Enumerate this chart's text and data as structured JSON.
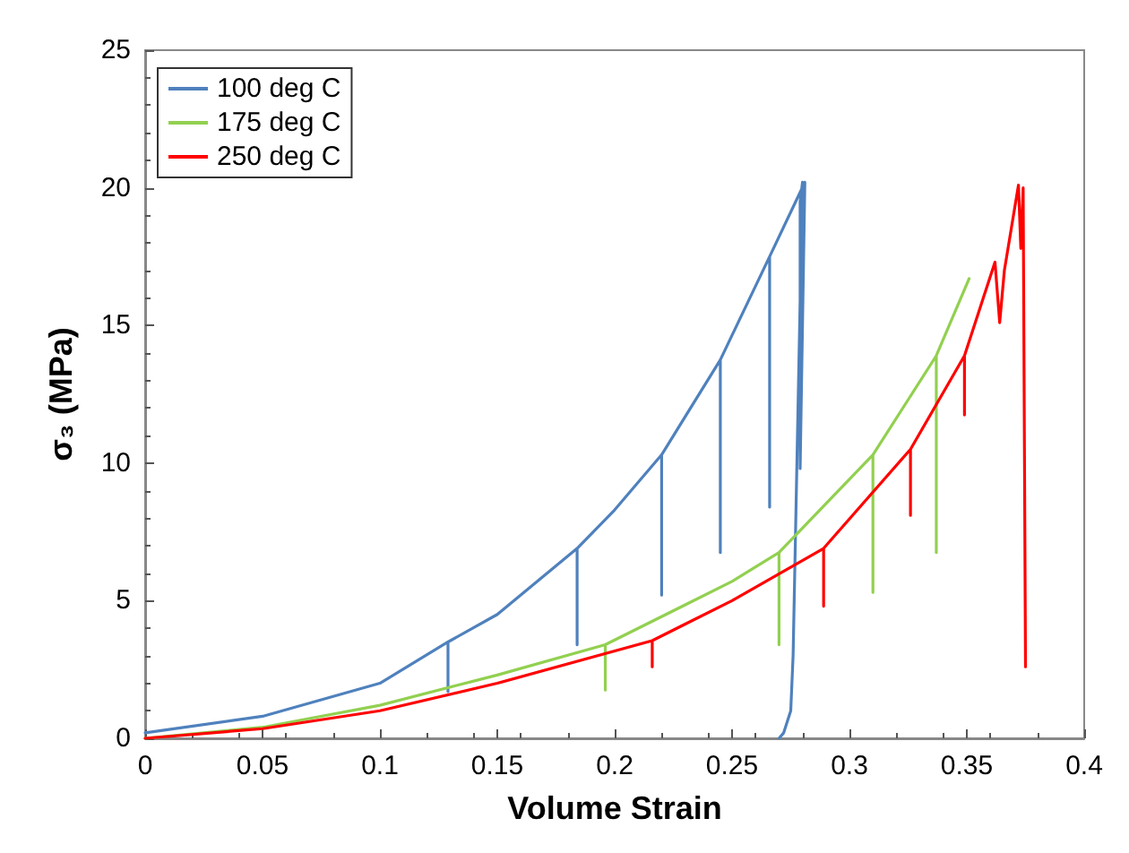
{
  "chart_data": {
    "type": "line",
    "xlabel": "Volume Strain",
    "ylabel": "σ₃ (MPa)",
    "xlim": [
      0,
      0.4
    ],
    "xticks": [
      0,
      0.05,
      0.1,
      0.15,
      0.2,
      0.25,
      0.3,
      0.35,
      0.4
    ],
    "ylim": [
      0,
      25
    ],
    "yticks": [
      0,
      5,
      10,
      15,
      20,
      25
    ],
    "grid": false,
    "legend": "top left",
    "marker": "none",
    "line_style": "solid",
    "series": [
      {
        "name": "100 deg C",
        "color": "#4f81bd",
        "x": [
          0,
          0.05,
          0.1,
          0.129,
          0.129,
          0.129,
          0.15,
          0.184,
          0.184,
          0.184,
          0.2,
          0.22,
          0.22,
          0.22,
          0.245,
          0.245,
          0.245,
          0.266,
          0.266,
          0.266,
          0.281,
          0.279,
          0.279,
          0.28,
          0.276,
          0.275,
          0.272,
          0.27
        ],
        "values": [
          0.2,
          0.8,
          2.0,
          3.5,
          1.7,
          3.5,
          4.5,
          6.9,
          3.4,
          6.9,
          8.3,
          10.3,
          5.2,
          10.3,
          13.75,
          6.75,
          13.75,
          17.5,
          8.4,
          17.5,
          20.2,
          9.8,
          19.5,
          20.2,
          3,
          1,
          0.2,
          0
        ]
      },
      {
        "name": "175 deg C",
        "color": "#92d050",
        "x": [
          0,
          0.05,
          0.1,
          0.15,
          0.196,
          0.196,
          0.196,
          0.25,
          0.27,
          0.27,
          0.27,
          0.31,
          0.31,
          0.31,
          0.337,
          0.337,
          0.337,
          0.351
        ],
        "values": [
          0,
          0.4,
          1.2,
          2.3,
          3.4,
          1.75,
          3.4,
          5.7,
          6.75,
          3.4,
          6.75,
          10.3,
          5.3,
          10.3,
          13.9,
          6.75,
          13.9,
          16.7
        ]
      },
      {
        "name": "250 deg C",
        "color": "#ff0000",
        "x": [
          0,
          0.05,
          0.1,
          0.15,
          0.216,
          0.216,
          0.216,
          0.25,
          0.289,
          0.289,
          0.289,
          0.326,
          0.326,
          0.326,
          0.349,
          0.349,
          0.349,
          0.362,
          0.364,
          0.366,
          0.372,
          0.373,
          0.374,
          0.375
        ],
        "values": [
          0,
          0.35,
          1.0,
          2.0,
          3.55,
          2.6,
          3.55,
          5.0,
          6.9,
          4.8,
          6.9,
          10.5,
          8.1,
          10.5,
          13.9,
          11.75,
          13.9,
          17.3,
          15.1,
          17.0,
          20.1,
          17.8,
          20.0,
          2.6
        ]
      }
    ]
  }
}
